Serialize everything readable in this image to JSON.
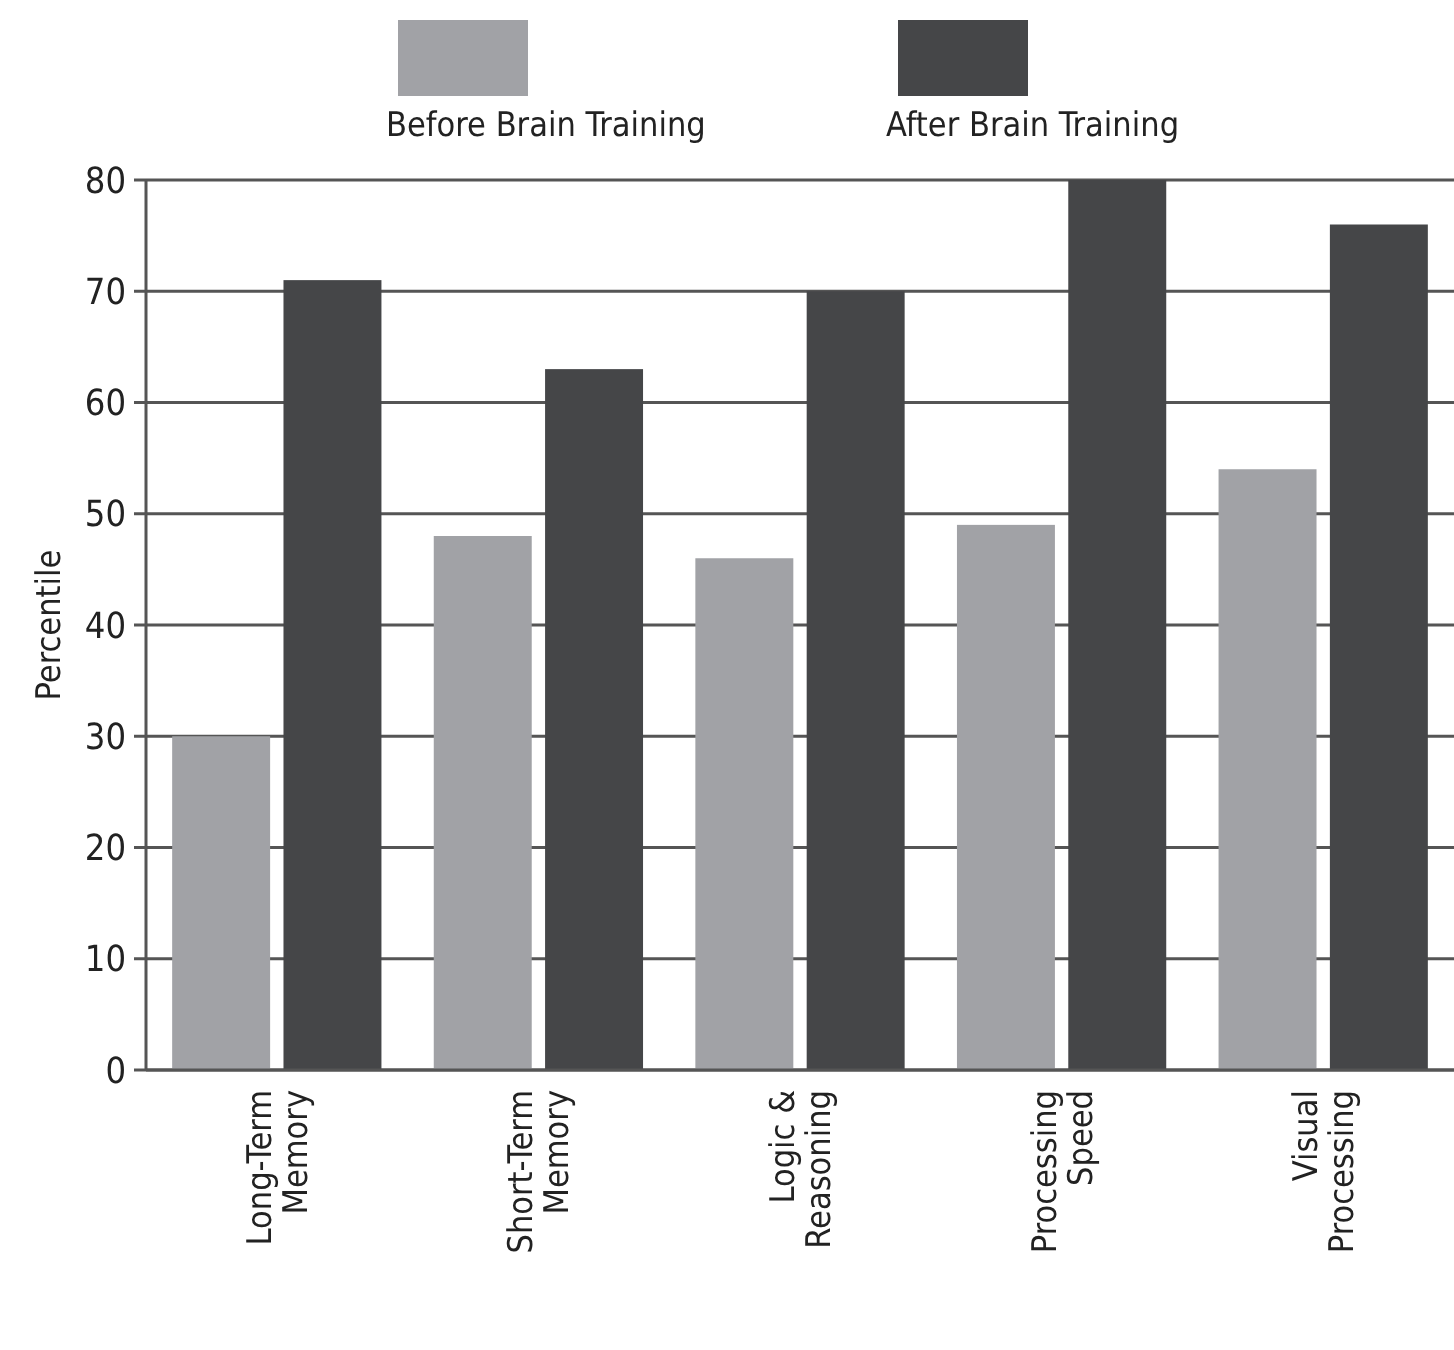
{
  "chart_data": {
    "type": "bar",
    "ylabel": "Percentile",
    "categories": [
      "Long-Term Memory",
      "Short-Term Memory",
      "Logic & Reasoning",
      "Processing Speed",
      "Visual Processing"
    ],
    "series": [
      {
        "name": "Before Brain Training",
        "color": "#a1a2a6",
        "values": [
          30,
          48,
          46,
          49,
          54
        ]
      },
      {
        "name": "After Brain Training",
        "color": "#454648",
        "values": [
          71,
          63,
          70,
          80,
          76
        ]
      }
    ],
    "ylim": [
      0,
      80
    ],
    "yticks": [
      0,
      10,
      20,
      30,
      40,
      50,
      60,
      70,
      80
    ],
    "grid": "y",
    "legend": "top"
  }
}
